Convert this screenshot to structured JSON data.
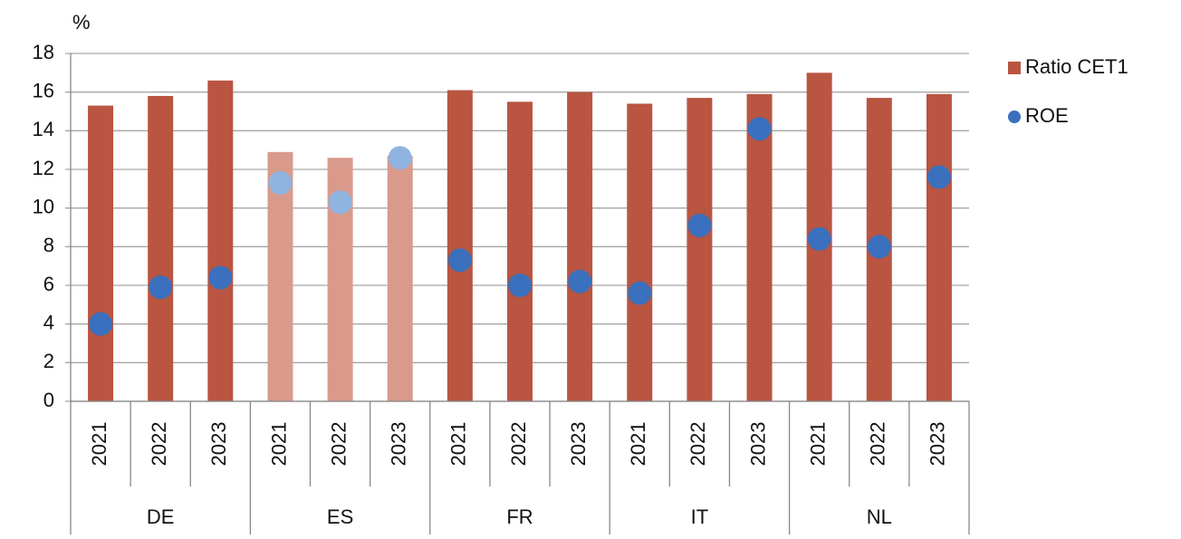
{
  "chart_data": {
    "type": "bar",
    "y_label": "%",
    "groups": [
      {
        "name": "DE",
        "categories": [
          "2021",
          "2022",
          "2023"
        ]
      },
      {
        "name": "ES",
        "categories": [
          "2021",
          "2022",
          "2023"
        ]
      },
      {
        "name": "FR",
        "categories": [
          "2021",
          "2022",
          "2023"
        ]
      },
      {
        "name": "IT",
        "categories": [
          "2021",
          "2022",
          "2023"
        ]
      },
      {
        "name": "NL",
        "categories": [
          "2021",
          "2022",
          "2023"
        ]
      }
    ],
    "series": [
      {
        "name": "Ratio CET1",
        "type": "bar",
        "color": "#b95541",
        "colors": [
          "#b95541",
          "#b95541",
          "#b95541",
          "#d99a8c",
          "#d99a8c",
          "#d99a8c",
          "#b95541",
          "#b95541",
          "#b95541",
          "#b95541",
          "#b95541",
          "#b95541",
          "#b95541",
          "#b95541",
          "#b95541"
        ],
        "values": [
          15.3,
          15.8,
          16.6,
          12.9,
          12.6,
          12.7,
          16.1,
          15.5,
          16.0,
          15.4,
          15.7,
          15.9,
          17.0,
          15.7,
          15.9
        ]
      },
      {
        "name": "ROE",
        "type": "scatter",
        "color": "#3a70bd",
        "colors": [
          "#3a70bd",
          "#3a70bd",
          "#3a70bd",
          "#8fb4e0",
          "#8fb4e0",
          "#8fb4e0",
          "#3a70bd",
          "#3a70bd",
          "#3a70bd",
          "#3a70bd",
          "#3a70bd",
          "#3a70bd",
          "#3a70bd",
          "#3a70bd",
          "#3a70bd"
        ],
        "values": [
          4.0,
          5.9,
          6.4,
          11.3,
          10.3,
          12.6,
          7.3,
          6.0,
          6.2,
          5.6,
          9.1,
          14.1,
          8.4,
          8.0,
          11.6
        ]
      }
    ],
    "ylim": [
      0,
      18
    ],
    "yticks": [
      0,
      2,
      4,
      6,
      8,
      10,
      12,
      14,
      16,
      18
    ],
    "grid": true,
    "legend": "right"
  }
}
